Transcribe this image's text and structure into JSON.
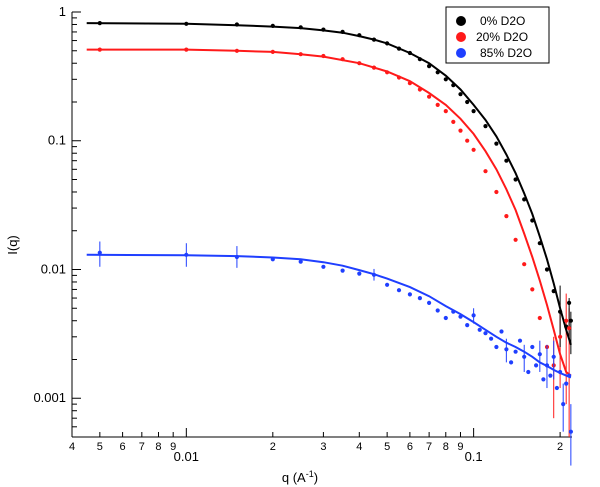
{
  "chart_data": {
    "type": "scatter",
    "scale": {
      "x": "log",
      "y": "log"
    },
    "xlim": [
      0.004,
      0.22
    ],
    "ylim": [
      0.0005,
      1
    ],
    "xlabel": "q (A",
    "xlabel_sup": "-1",
    "xlabel_end": ")",
    "ylabel": "I(q)",
    "x_major_ticks": [
      {
        "value": 0.01,
        "label": "0.01"
      },
      {
        "value": 0.1,
        "label": "0.1"
      }
    ],
    "x_minor_ticks": [
      {
        "value": 0.004,
        "label": "4"
      },
      {
        "value": 0.005,
        "label": "5"
      },
      {
        "value": 0.006,
        "label": "6"
      },
      {
        "value": 0.007,
        "label": "7"
      },
      {
        "value": 0.008,
        "label": "8"
      },
      {
        "value": 0.009,
        "label": "9"
      },
      {
        "value": 0.02,
        "label": "2"
      },
      {
        "value": 0.03,
        "label": "3"
      },
      {
        "value": 0.04,
        "label": "4"
      },
      {
        "value": 0.05,
        "label": "5"
      },
      {
        "value": 0.06,
        "label": "6"
      },
      {
        "value": 0.07,
        "label": "7"
      },
      {
        "value": 0.08,
        "label": "8"
      },
      {
        "value": 0.09,
        "label": "9"
      },
      {
        "value": 0.2,
        "label": "2"
      }
    ],
    "y_ticks": [
      {
        "value": 1,
        "label": "1"
      },
      {
        "value": 0.1,
        "label": "0.1"
      },
      {
        "value": 0.01,
        "label": "0.01"
      },
      {
        "value": 0.001,
        "label": "0.001"
      }
    ],
    "grid": false,
    "legend_position": "top-right",
    "series": [
      {
        "name": "0% D2O",
        "color": "#000000",
        "points": [
          [
            0.005,
            0.82
          ],
          [
            0.01,
            0.81
          ],
          [
            0.015,
            0.8
          ],
          [
            0.02,
            0.78
          ],
          [
            0.025,
            0.76
          ],
          [
            0.03,
            0.73
          ],
          [
            0.035,
            0.7
          ],
          [
            0.04,
            0.66
          ],
          [
            0.045,
            0.61
          ],
          [
            0.05,
            0.57
          ],
          [
            0.055,
            0.52
          ],
          [
            0.06,
            0.48
          ],
          [
            0.065,
            0.43
          ],
          [
            0.07,
            0.38
          ],
          [
            0.075,
            0.34
          ],
          [
            0.08,
            0.3
          ],
          [
            0.085,
            0.27
          ],
          [
            0.09,
            0.23
          ],
          [
            0.095,
            0.2
          ],
          [
            0.1,
            0.17
          ],
          [
            0.11,
            0.13
          ],
          [
            0.12,
            0.095
          ],
          [
            0.13,
            0.07
          ],
          [
            0.14,
            0.05
          ],
          [
            0.15,
            0.035
          ],
          [
            0.16,
            0.024
          ],
          [
            0.17,
            0.016
          ],
          [
            0.18,
            0.01
          ],
          [
            0.19,
            0.0068
          ],
          [
            0.2,
            0.0047
          ],
          [
            0.21,
            0.0036
          ],
          [
            0.215,
            0.0055
          ],
          [
            0.218,
            0.004
          ]
        ],
        "fit": [
          [
            0.0045,
            0.82
          ],
          [
            0.01,
            0.81
          ],
          [
            0.015,
            0.79
          ],
          [
            0.02,
            0.77
          ],
          [
            0.025,
            0.75
          ],
          [
            0.03,
            0.72
          ],
          [
            0.035,
            0.69
          ],
          [
            0.04,
            0.65
          ],
          [
            0.045,
            0.61
          ],
          [
            0.05,
            0.57
          ],
          [
            0.06,
            0.48
          ],
          [
            0.07,
            0.4
          ],
          [
            0.08,
            0.32
          ],
          [
            0.09,
            0.25
          ],
          [
            0.1,
            0.19
          ],
          [
            0.11,
            0.145
          ],
          [
            0.12,
            0.108
          ],
          [
            0.13,
            0.078
          ],
          [
            0.14,
            0.056
          ],
          [
            0.15,
            0.039
          ],
          [
            0.16,
            0.027
          ],
          [
            0.17,
            0.018
          ],
          [
            0.18,
            0.012
          ],
          [
            0.19,
            0.0078
          ],
          [
            0.2,
            0.005
          ],
          [
            0.21,
            0.0034
          ],
          [
            0.218,
            0.0026
          ]
        ]
      },
      {
        "name": " 20% D2O",
        "color": "#ff1a1a",
        "points": [
          [
            0.005,
            0.51
          ],
          [
            0.01,
            0.51
          ],
          [
            0.015,
            0.5
          ],
          [
            0.02,
            0.49
          ],
          [
            0.025,
            0.47
          ],
          [
            0.03,
            0.455
          ],
          [
            0.035,
            0.43
          ],
          [
            0.04,
            0.4
          ],
          [
            0.045,
            0.37
          ],
          [
            0.05,
            0.34
          ],
          [
            0.055,
            0.31
          ],
          [
            0.06,
            0.28
          ],
          [
            0.065,
            0.25
          ],
          [
            0.07,
            0.22
          ],
          [
            0.075,
            0.19
          ],
          [
            0.08,
            0.17
          ],
          [
            0.085,
            0.14
          ],
          [
            0.09,
            0.12
          ],
          [
            0.095,
            0.1
          ],
          [
            0.1,
            0.085
          ],
          [
            0.11,
            0.058
          ],
          [
            0.12,
            0.04
          ],
          [
            0.13,
            0.026
          ],
          [
            0.14,
            0.017
          ],
          [
            0.15,
            0.011
          ],
          [
            0.16,
            0.007
          ],
          [
            0.17,
            0.0042
          ],
          [
            0.18,
            0.0025
          ],
          [
            0.19,
            0.0018
          ],
          [
            0.2,
            0.003
          ],
          [
            0.21,
            0.004
          ],
          [
            0.215,
            0.0035
          ]
        ],
        "fit": [
          [
            0.0045,
            0.51
          ],
          [
            0.01,
            0.51
          ],
          [
            0.015,
            0.5
          ],
          [
            0.02,
            0.49
          ],
          [
            0.025,
            0.47
          ],
          [
            0.03,
            0.45
          ],
          [
            0.04,
            0.4
          ],
          [
            0.05,
            0.345
          ],
          [
            0.06,
            0.29
          ],
          [
            0.07,
            0.235
          ],
          [
            0.08,
            0.19
          ],
          [
            0.09,
            0.148
          ],
          [
            0.1,
            0.113
          ],
          [
            0.11,
            0.083
          ],
          [
            0.12,
            0.06
          ],
          [
            0.13,
            0.042
          ],
          [
            0.14,
            0.029
          ],
          [
            0.15,
            0.019
          ],
          [
            0.16,
            0.0125
          ],
          [
            0.17,
            0.0082
          ],
          [
            0.18,
            0.0053
          ],
          [
            0.19,
            0.0034
          ],
          [
            0.2,
            0.0022
          ],
          [
            0.21,
            0.0016
          ],
          [
            0.218,
            0.0015
          ]
        ]
      },
      {
        "name": "85% D2O",
        "color": "#1f3fff",
        "points": [
          [
            0.005,
            0.0135
          ],
          [
            0.01,
            0.013
          ],
          [
            0.015,
            0.0125
          ],
          [
            0.02,
            0.012
          ],
          [
            0.025,
            0.0115
          ],
          [
            0.03,
            0.0105
          ],
          [
            0.035,
            0.0098
          ],
          [
            0.04,
            0.0093
          ],
          [
            0.045,
            0.0091
          ],
          [
            0.05,
            0.0076
          ],
          [
            0.055,
            0.0069
          ],
          [
            0.06,
            0.0064
          ],
          [
            0.065,
            0.006
          ],
          [
            0.07,
            0.0055
          ],
          [
            0.075,
            0.0048
          ],
          [
            0.08,
            0.0042
          ],
          [
            0.085,
            0.0047
          ],
          [
            0.09,
            0.0043
          ],
          [
            0.095,
            0.0037
          ],
          [
            0.1,
            0.0044
          ],
          [
            0.105,
            0.0034
          ],
          [
            0.11,
            0.0032
          ],
          [
            0.115,
            0.0029
          ],
          [
            0.12,
            0.0025
          ],
          [
            0.125,
            0.0033
          ],
          [
            0.13,
            0.0024
          ],
          [
            0.135,
            0.0019
          ],
          [
            0.14,
            0.0023
          ],
          [
            0.145,
            0.0028
          ],
          [
            0.15,
            0.0021
          ],
          [
            0.155,
            0.0016
          ],
          [
            0.16,
            0.0025
          ],
          [
            0.165,
            0.0018
          ],
          [
            0.17,
            0.0022
          ],
          [
            0.175,
            0.0014
          ],
          [
            0.18,
            0.0018
          ],
          [
            0.185,
            0.0015
          ],
          [
            0.19,
            0.0021
          ],
          [
            0.195,
            0.0012
          ],
          [
            0.2,
            0.0016
          ],
          [
            0.205,
            0.0009
          ],
          [
            0.21,
            0.0013
          ],
          [
            0.215,
            0.0015
          ],
          [
            0.218,
            0.00055
          ]
        ],
        "errors": [
          [
            0.005,
            0.0105,
            0.0165
          ],
          [
            0.01,
            0.0105,
            0.016
          ],
          [
            0.015,
            0.0103,
            0.0152
          ],
          [
            0.045,
            0.0082,
            0.0101
          ],
          [
            0.1,
            0.0038,
            0.005
          ],
          [
            0.13,
            0.0019,
            0.0029
          ],
          [
            0.15,
            0.0016,
            0.0026
          ],
          [
            0.17,
            0.0016,
            0.0028
          ],
          [
            0.18,
            0.0012,
            0.0026
          ],
          [
            0.19,
            0.0014,
            0.0028
          ],
          [
            0.205,
            0.00055,
            0.0013
          ],
          [
            0.218,
            0.0003,
            0.0009
          ]
        ],
        "fit": [
          [
            0.0045,
            0.013
          ],
          [
            0.01,
            0.0129
          ],
          [
            0.015,
            0.0127
          ],
          [
            0.02,
            0.0124
          ],
          [
            0.025,
            0.012
          ],
          [
            0.03,
            0.0114
          ],
          [
            0.035,
            0.0107
          ],
          [
            0.04,
            0.0099
          ],
          [
            0.045,
            0.0092
          ],
          [
            0.05,
            0.0085
          ],
          [
            0.06,
            0.0073
          ],
          [
            0.07,
            0.0062
          ],
          [
            0.08,
            0.0052
          ],
          [
            0.09,
            0.0045
          ],
          [
            0.1,
            0.0039
          ],
          [
            0.11,
            0.0034
          ],
          [
            0.12,
            0.003
          ],
          [
            0.13,
            0.0027
          ],
          [
            0.14,
            0.0025
          ],
          [
            0.15,
            0.0023
          ],
          [
            0.16,
            0.0021
          ],
          [
            0.17,
            0.0019
          ],
          [
            0.18,
            0.00178
          ],
          [
            0.19,
            0.00166
          ],
          [
            0.2,
            0.00157
          ],
          [
            0.21,
            0.0015
          ],
          [
            0.218,
            0.00145
          ]
        ]
      }
    ],
    "red_errors": [
      [
        0.19,
        0.0007,
        0.003
      ],
      [
        0.2,
        0.0012,
        0.0055
      ],
      [
        0.21,
        0.0009,
        0.0065
      ],
      [
        0.215,
        0.0005,
        0.005
      ]
    ],
    "black_errors": [
      [
        0.2,
        0.0025,
        0.0075
      ],
      [
        0.215,
        0.0028,
        0.006
      ],
      [
        0.218,
        0.0022,
        0.0047
      ]
    ]
  }
}
